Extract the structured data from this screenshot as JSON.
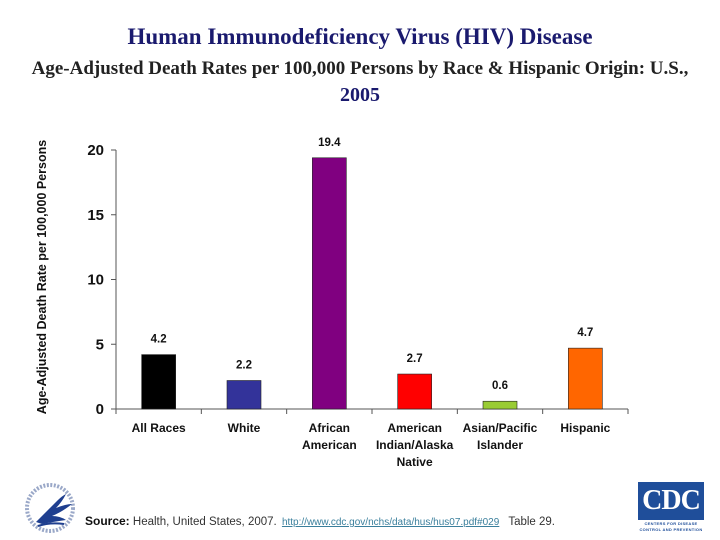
{
  "header": {
    "title": "Human Immunodeficiency Virus (HIV) Disease",
    "subtitle": "Age-Adjusted Death Rates per 100,000 Persons by Race & Hispanic Origin: U.S.,",
    "year": "2005"
  },
  "chart_data": {
    "type": "bar",
    "title": "Human Immunodeficiency Virus (HIV) Disease — Age-Adjusted Death Rates per 100,000 Persons by Race & Hispanic Origin: U.S., 2005",
    "xlabel": "",
    "ylabel": "Age-Adjusted Death Rate per 100,000 Persons",
    "ylim": [
      0,
      20
    ],
    "yticks": [
      0,
      5,
      10,
      15,
      20
    ],
    "grid": false,
    "legend": "none",
    "categories": [
      [
        "All Races"
      ],
      [
        "White"
      ],
      [
        "African",
        "American"
      ],
      [
        "American",
        "Indian/Alaska",
        "Native"
      ],
      [
        "Asian/Pacific",
        "Islander"
      ],
      [
        "Hispanic"
      ]
    ],
    "values": [
      4.2,
      2.2,
      19.4,
      2.7,
      0.6,
      4.7
    ],
    "data_labels": [
      "4.2",
      "2.2",
      "19.4",
      "2.7",
      "0.6",
      "4.7"
    ],
    "colors": [
      "#000000",
      "#33339a",
      "#800080",
      "#ff0000",
      "#99cc33",
      "#ff6600"
    ]
  },
  "footer": {
    "source_label": "Source:",
    "source_text": "Health, United States, 2007.",
    "source_link": "http://www.cdc.gov/nchs/data/hus/hus07.pdf#029",
    "table_ref": "Table 29.",
    "cdc_logo_text": "CDC",
    "cdc_logo_sub1": "CENTERS FOR DISEASE",
    "cdc_logo_sub2": "CONTROL AND PREVENTION"
  }
}
